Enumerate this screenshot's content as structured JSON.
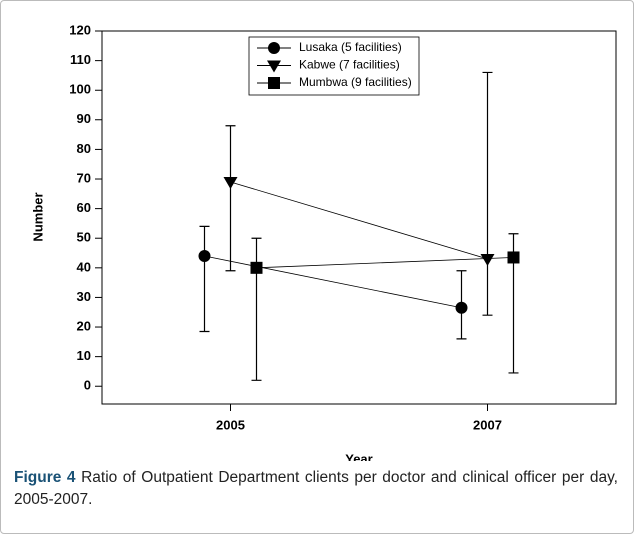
{
  "chart_data": {
    "type": "errorbar-line",
    "x_label": "Year",
    "y_label": "Number",
    "x": [
      2005,
      2007
    ],
    "xlim": [
      2004,
      2008
    ],
    "xticks": [
      2005,
      2007
    ],
    "ylim": [
      -6,
      120
    ],
    "yticks": [
      0,
      10,
      20,
      30,
      40,
      50,
      60,
      70,
      80,
      90,
      100,
      110,
      120
    ],
    "legend": "top",
    "series": [
      {
        "name": "Lusaka (5 facilities)",
        "color": "#000000",
        "marker": "circle",
        "values": [
          44,
          26.5
        ],
        "lower": [
          18.5,
          16
        ],
        "upper": [
          54,
          39
        ]
      },
      {
        "name": "Kabwe (7 facilities)",
        "color": "#000000",
        "marker": "triangle-down",
        "values": [
          69,
          43
        ],
        "lower": [
          39,
          24
        ],
        "upper": [
          88,
          106
        ]
      },
      {
        "name": "Mumbwa (9 facilities)",
        "color": "#000000",
        "marker": "square",
        "values": [
          40,
          43.5
        ],
        "lower": [
          2,
          4.5
        ],
        "upper": [
          50,
          51.5
        ]
      }
    ]
  },
  "caption": {
    "label": "Figure 4",
    "text": "Ratio of Outpatient Department clients per doctor and clinical officer per day, 2005-2007."
  }
}
